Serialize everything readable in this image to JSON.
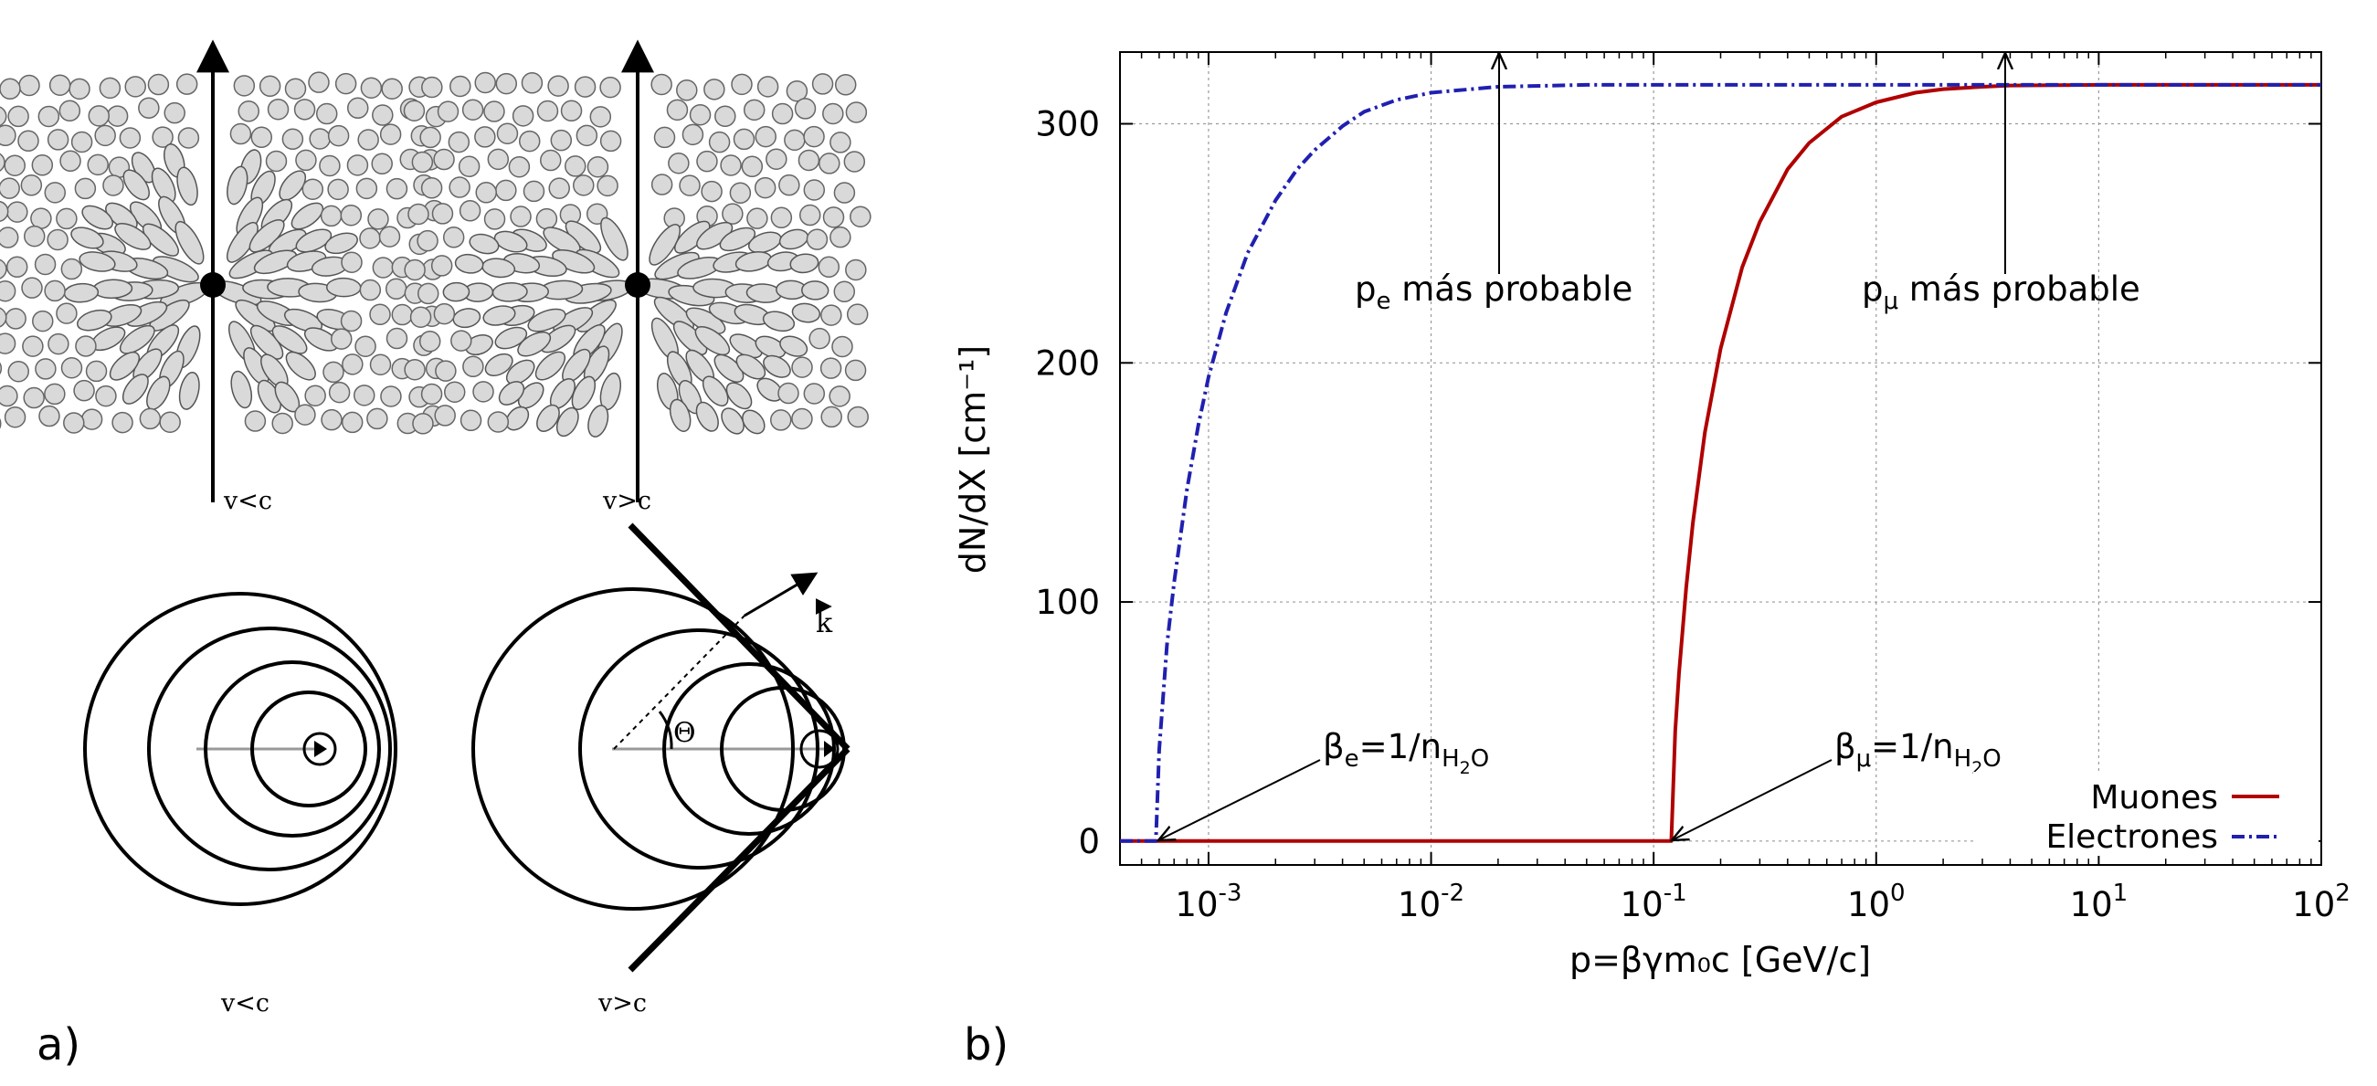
{
  "panel_labels": {
    "a": "a)",
    "b": "b)"
  },
  "panel_a": {
    "top_left_label": "v<c",
    "top_right_label": "v>c",
    "bottom_left_label": "v<c",
    "bottom_right_label": "v>c",
    "wave_vector_label": "k",
    "angle_label": "Θ"
  },
  "chart_data": {
    "type": "line",
    "xscale": "log",
    "xlabel": "p=βγm₀c [GeV/c]",
    "ylabel": "dN/dX [cm⁻¹]",
    "xlim": [
      0.0004,
      100
    ],
    "ylim": [
      -10,
      330
    ],
    "grid": true,
    "x_ticks": [
      {
        "value": 0.001,
        "base": "10",
        "exp": "-3"
      },
      {
        "value": 0.01,
        "base": "10",
        "exp": "-2"
      },
      {
        "value": 0.1,
        "base": "10",
        "exp": "-1"
      },
      {
        "value": 1,
        "base": "10",
        "exp": "0"
      },
      {
        "value": 10,
        "base": "10",
        "exp": "1"
      },
      {
        "value": 100,
        "base": "10",
        "exp": "2"
      }
    ],
    "y_ticks": [
      0,
      100,
      200,
      300
    ],
    "legend": {
      "position": "bottom-right"
    },
    "series": [
      {
        "name": "Muones",
        "color": "#b00000",
        "dash": "solid",
        "x": [
          0.0004,
          0.12,
          0.125,
          0.13,
          0.14,
          0.15,
          0.17,
          0.2,
          0.25,
          0.3,
          0.4,
          0.5,
          0.7,
          1,
          1.5,
          2,
          3,
          4,
          10,
          100
        ],
        "y": [
          0,
          0,
          46,
          70,
          106,
          133,
          171,
          206,
          240,
          259,
          281,
          292,
          303,
          309,
          313,
          314.5,
          315.5,
          316,
          316.3,
          316.3
        ]
      },
      {
        "name": "Electrones",
        "color": "#2020b0",
        "dash": "dash-dot",
        "x": [
          0.0004,
          0.00058,
          0.0006,
          0.00065,
          0.0007,
          0.0008,
          0.0009,
          0.001,
          0.0012,
          0.0015,
          0.002,
          0.0025,
          0.003,
          0.004,
          0.005,
          0.007,
          0.01,
          0.02,
          0.05,
          100
        ],
        "y": [
          0,
          0,
          38,
          82,
          108,
          147,
          174,
          194,
          221,
          246,
          268,
          281,
          289,
          299,
          305,
          310,
          313,
          315.5,
          316.3,
          316.3
        ]
      }
    ],
    "annotations": {
      "pe_base": "p",
      "pe_sub": "e",
      "pe_rest": " más probable",
      "pmu_base": "p",
      "pmu_sub": "μ",
      "pmu_rest": " más probable",
      "be_base": "β",
      "be_sub": "e",
      "be_mid": "=1/n",
      "be_sub2": "H",
      "be_sub3": "2",
      "be_sub4": "O",
      "bmu_base": "β",
      "bmu_sub": "μ",
      "bmu_mid": "=1/n",
      "bmu_sub2": "H",
      "bmu_sub3": "2",
      "bmu_sub4": "O"
    }
  }
}
